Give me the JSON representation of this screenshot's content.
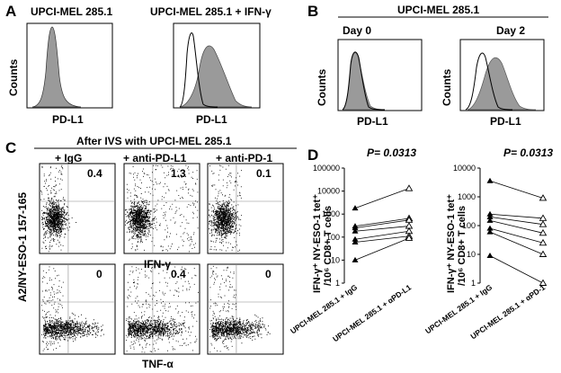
{
  "panel_a": {
    "letter": "A",
    "left_title": "UPCI-MEL 285.1",
    "right_title": "UPCI-MEL 285.1 + IFN-γ",
    "ylabel": "Counts",
    "xlabel": "PD-L1"
  },
  "panel_b": {
    "letter": "B",
    "title": "UPCI-MEL 285.1",
    "day0": "Day 0",
    "day2": "Day 2",
    "ylabel": "Counts",
    "xlabel": "PD-L1"
  },
  "panel_c": {
    "letter": "C",
    "title": "After IVS with UPCI-MEL 285.1",
    "col_labels": [
      "+ IgG",
      "+ anti-PD-L1",
      "+ anti-PD-1"
    ],
    "ylabel": "A2/NY-ESO-1 157-165",
    "row1_xlabel": "IFN-γ",
    "row2_xlabel": "TNF-α",
    "row1_values": [
      "0.4",
      "1.3",
      "0.1"
    ],
    "row2_values": [
      "0",
      "0.4",
      "0"
    ]
  },
  "panel_d": {
    "letter": "D",
    "ylabel_line1": "IFN-γ⁺ NY-ESO-1 tet⁺",
    "ylabel_line2": "/10⁶ CD8+ T cells",
    "left": {
      "pvalue": "P= 0.0313",
      "x_labels": [
        "UPCI-MEL 285.1 + IgG",
        "UPCI-MEL 285.1 + αPD-L1"
      ],
      "y_ticks": [
        "100000",
        "10000",
        "1000",
        "100",
        "10",
        "1"
      ]
    },
    "right": {
      "pvalue": "P= 0.0313",
      "x_labels": [
        "UPCI-MEL 285.1 + IgG",
        "UPCI-MEL 285.1 + αPD-1"
      ],
      "y_ticks": [
        "10000",
        "1000",
        "100",
        "10",
        "1"
      ]
    }
  },
  "chart_data": [
    {
      "type": "line",
      "title": "",
      "ylabel": "IFN-γ⁺ NY-ESO-1 tet⁺ /10⁶ CD8+ T cells",
      "yscale": "log",
      "ylim": [
        1,
        100000
      ],
      "categories": [
        "UPCI-MEL 285.1 + IgG",
        "UPCI-MEL 285.1 + αPD-L1"
      ],
      "series": [
        {
          "values": [
            1800,
            13000
          ]
        },
        {
          "values": [
            300,
            650
          ]
        },
        {
          "values": [
            250,
            550
          ]
        },
        {
          "values": [
            180,
            300
          ]
        },
        {
          "values": [
            80,
            180
          ]
        },
        {
          "values": [
            60,
            110
          ]
        },
        {
          "values": [
            10,
            90
          ]
        }
      ],
      "annotation": "P= 0.0313"
    },
    {
      "type": "line",
      "title": "",
      "ylabel": "IFN-γ⁺ NY-ESO-1 tet⁺ /10⁶ CD8+ T cells",
      "yscale": "log",
      "ylim": [
        1,
        10000
      ],
      "categories": [
        "UPCI-MEL 285.1 + IgG",
        "UPCI-MEL 285.1 + αPD-1"
      ],
      "series": [
        {
          "values": [
            3600,
            900
          ]
        },
        {
          "values": [
            250,
            180
          ]
        },
        {
          "values": [
            200,
            110
          ]
        },
        {
          "values": [
            150,
            55
          ]
        },
        {
          "values": [
            80,
            25
          ]
        },
        {
          "values": [
            60,
            10
          ]
        },
        {
          "values": [
            9,
            1
          ]
        }
      ],
      "annotation": "P= 0.0313"
    }
  ]
}
